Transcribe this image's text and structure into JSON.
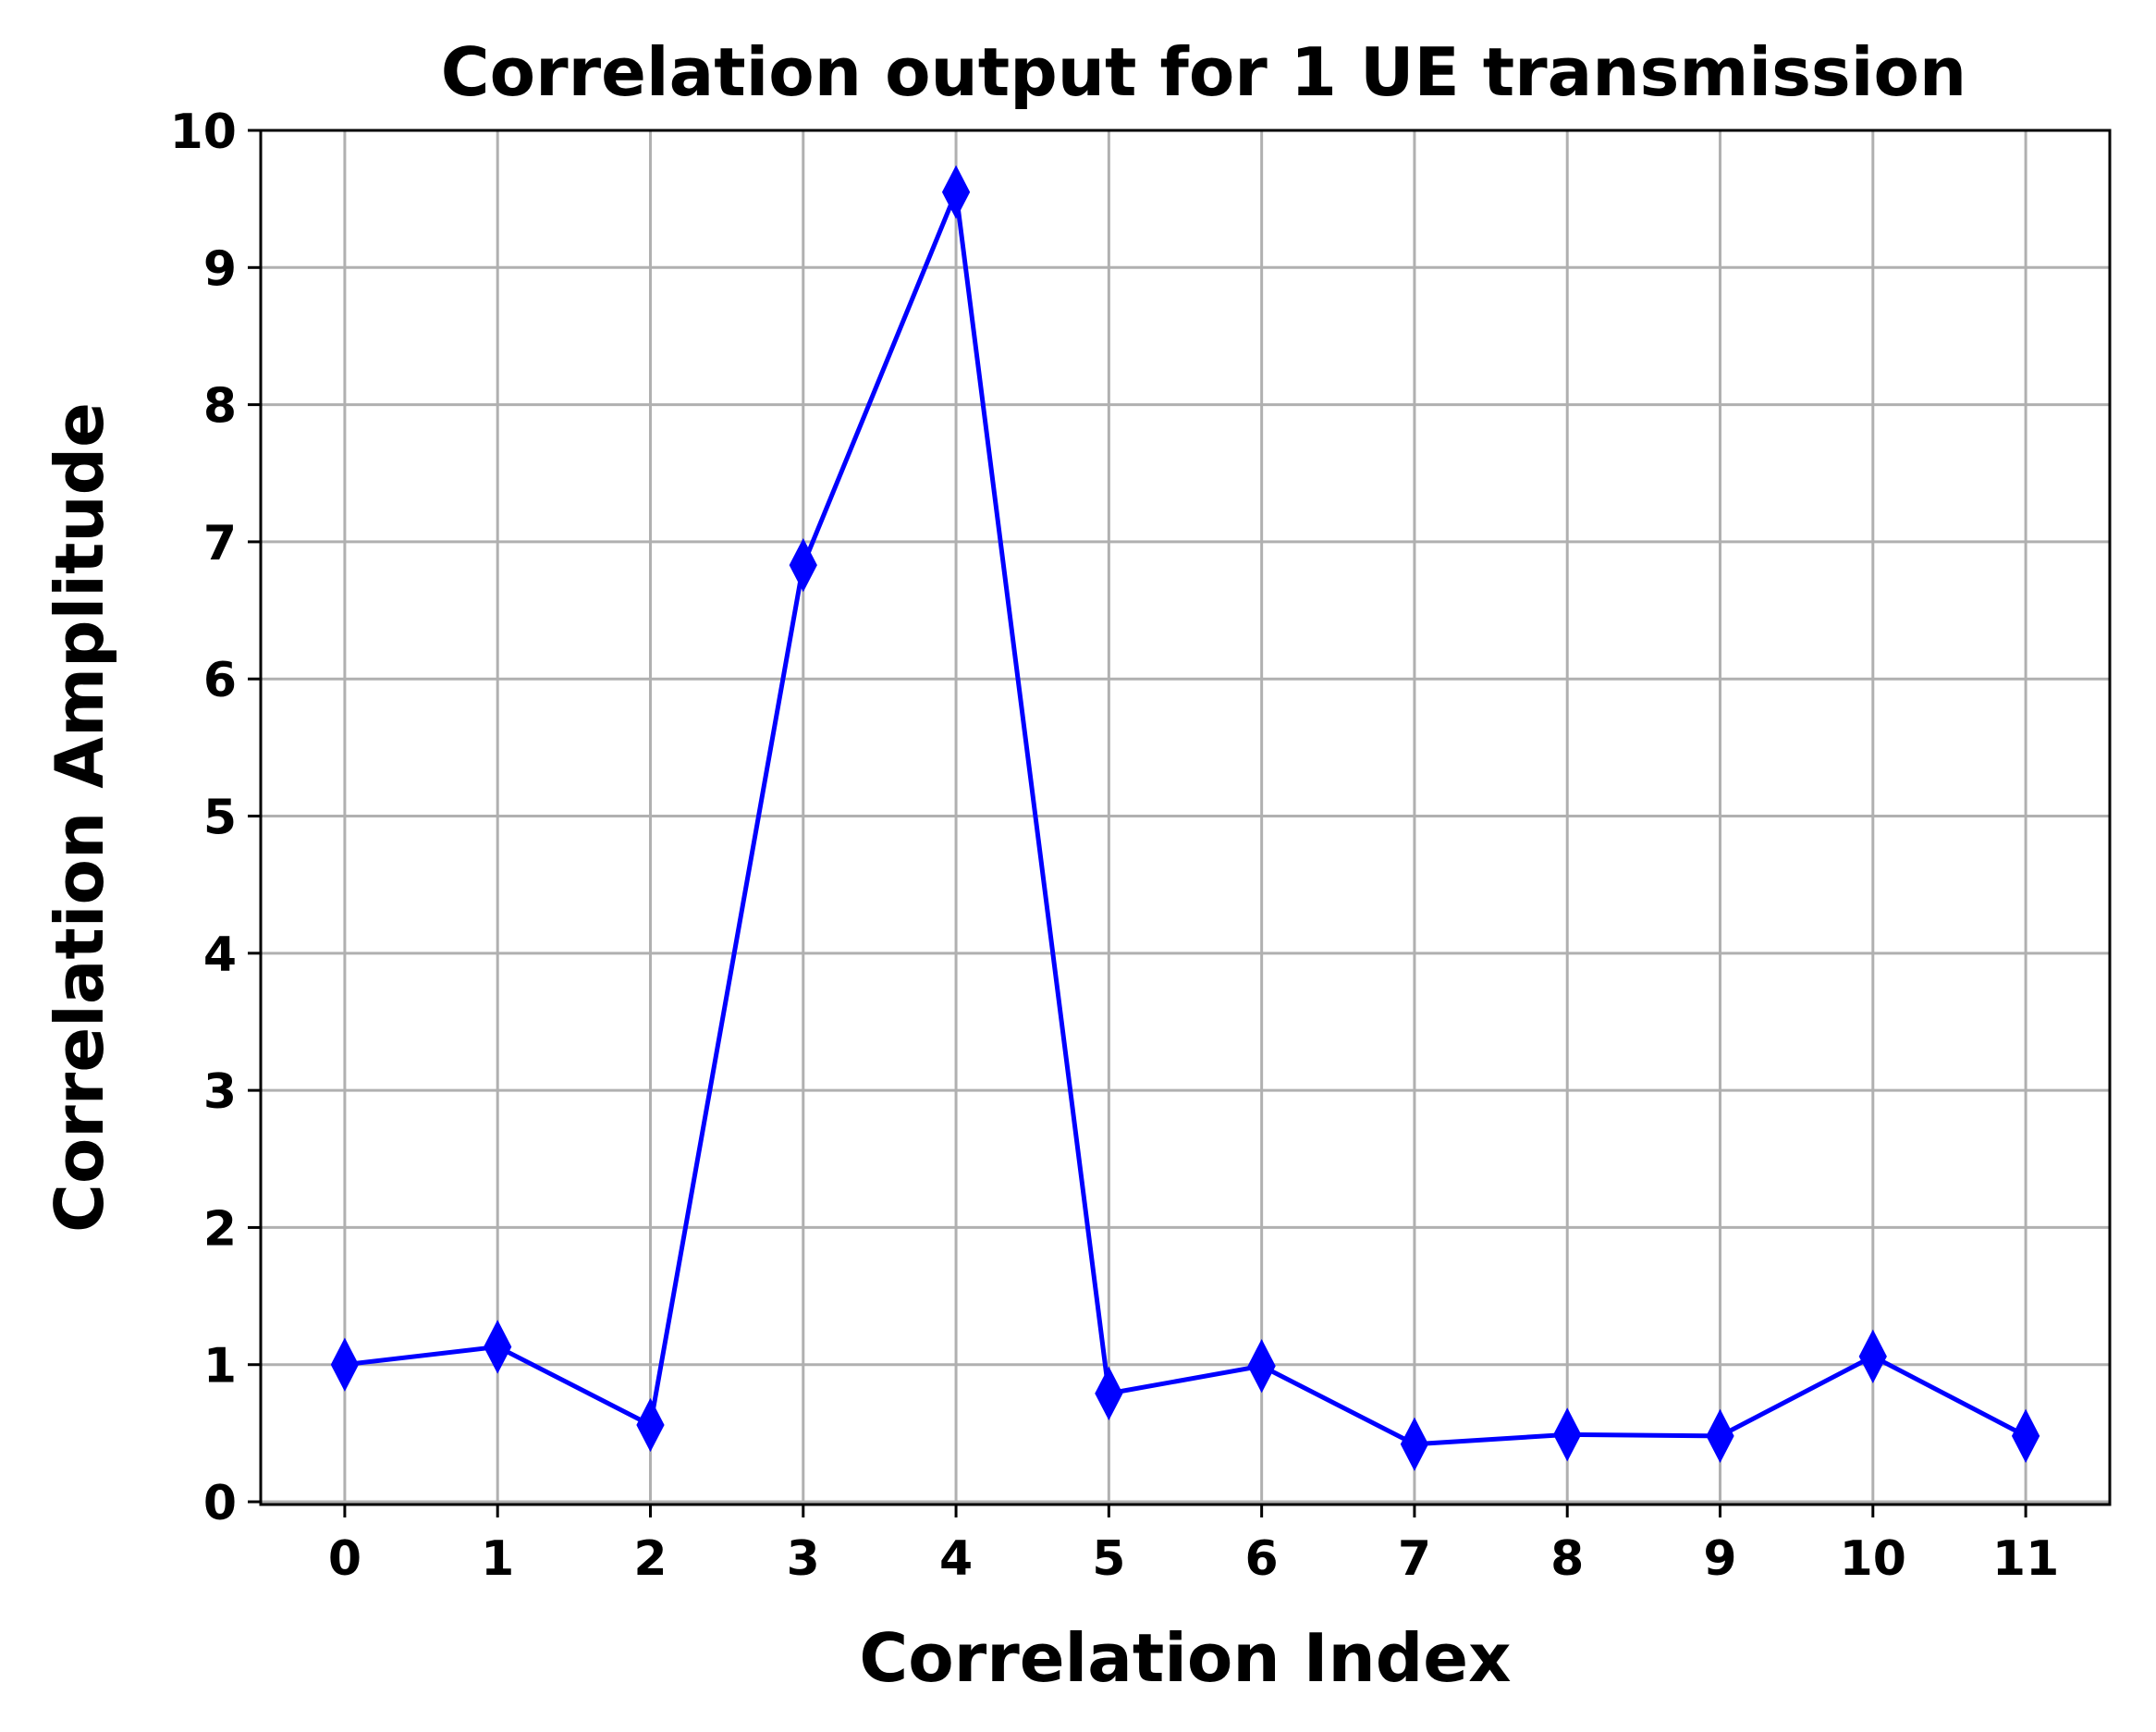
{
  "chart_data": {
    "type": "line",
    "title": "Correlation output for 1 UE transmission",
    "xlabel": "Correlation Index",
    "ylabel": "Correlation Amplitude",
    "x": [
      0,
      1,
      2,
      3,
      4,
      5,
      6,
      7,
      8,
      9,
      10,
      11
    ],
    "xticks": [
      "0",
      "1",
      "2",
      "3",
      "4",
      "5",
      "6",
      "7",
      "8",
      "9",
      "10",
      "11"
    ],
    "yticks": [
      "0",
      "1",
      "2",
      "3",
      "4",
      "5",
      "6",
      "7",
      "8",
      "9",
      "10"
    ],
    "xlim": [
      -0.55,
      11.55
    ],
    "ylim": [
      -0.02,
      10
    ],
    "grid": true,
    "legend": "none",
    "series": [
      {
        "color": "#0000ff",
        "marker": "thin-diamond",
        "values": [
          1.0,
          1.13,
          0.56,
          6.83,
          9.55,
          0.79,
          0.99,
          0.42,
          0.49,
          0.48,
          1.06,
          0.48
        ]
      }
    ]
  }
}
